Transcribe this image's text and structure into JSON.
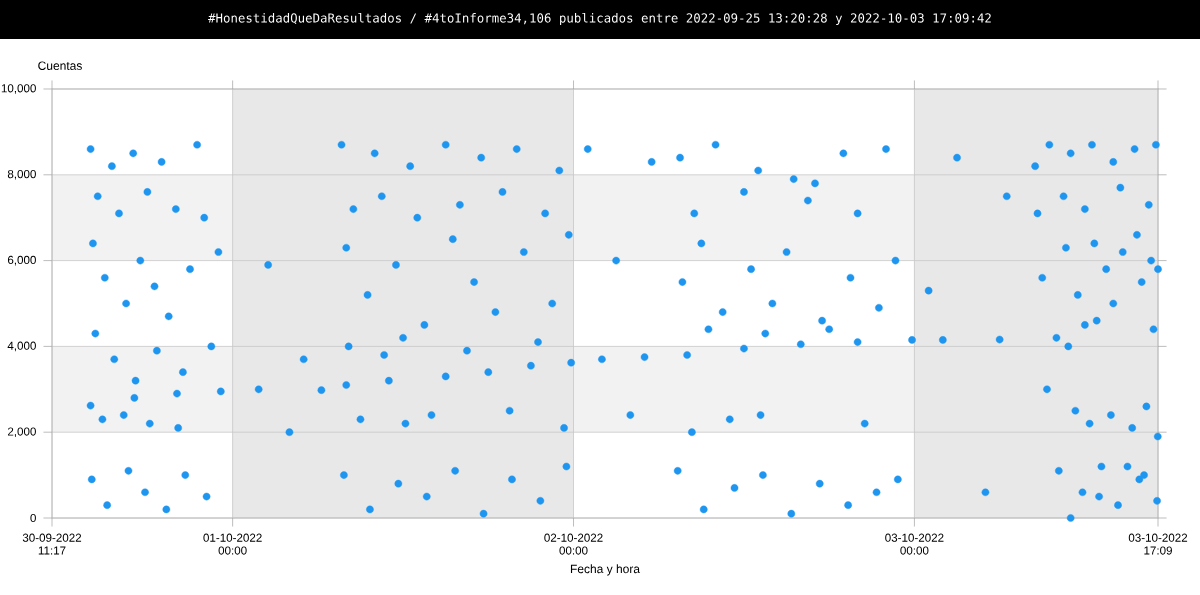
{
  "chart_data": {
    "type": "scatter",
    "title": "#HonestidadQueDaResultados / #4toInforme34,106 publicados entre 2022-09-25 13:20:28 y 2022-10-03 17:09:42",
    "xlabel": "Fecha y hora",
    "ylabel": "Cuentas",
    "xlim": [
      "2022-09-30T11:17",
      "2022-10-03T17:09"
    ],
    "xticks": [
      {
        "value": "2022-09-30T11:17",
        "label": "30-09-2022 11:17"
      },
      {
        "value": "2022-10-01T00:00",
        "label": "01-10-2022 00:00"
      },
      {
        "value": "2022-10-02T00:00",
        "label": "02-10-2022 00:00"
      },
      {
        "value": "2022-10-03T00:00",
        "label": "03-10-2022 00:00"
      },
      {
        "value": "2022-10-03T17:09",
        "label": "03-10-2022 17:09"
      }
    ],
    "ylim": [
      0,
      10000
    ],
    "yticks": [
      0,
      {
        "value": 2000,
        "label": "2,000"
      },
      {
        "value": 4000,
        "label": "4,000"
      },
      {
        "value": 6000,
        "label": "6,000"
      },
      {
        "value": 8000,
        "label": "8,000"
      },
      {
        "value": 10000,
        "label": "10,000"
      }
    ],
    "grid": true,
    "marker": "circle",
    "bands": [
      {
        "axis": "y",
        "from": 2000,
        "to": 4000,
        "color": "#f2f2f2"
      },
      {
        "axis": "y",
        "from": 6000,
        "to": 8000,
        "color": "#f2f2f2"
      },
      {
        "axis": "x",
        "from": "2022-10-01T00:00",
        "to": "2022-10-02T00:00",
        "color": "#e8e8e8"
      },
      {
        "axis": "x",
        "from": "2022-10-03T00:00",
        "to": "2022-10-03T17:09",
        "color": "#e8e8e8"
      }
    ],
    "series": [
      {
        "color": "#1e96f0",
        "x": [
          "2022-09-30T14:00",
          "2022-09-30T15:30",
          "2022-09-30T17:00",
          "2022-09-30T19:00",
          "2022-09-30T21:30",
          "2022-09-30T14:30",
          "2022-09-30T16:00",
          "2022-09-30T18:00",
          "2022-09-30T20:00",
          "2022-09-30T22:00",
          "2022-09-30T14:10",
          "2022-09-30T15:00",
          "2022-09-30T16:30",
          "2022-09-30T17:30",
          "2022-09-30T18:30",
          "2022-09-30T19:30",
          "2022-09-30T21:00",
          "2022-09-30T23:00",
          "2022-09-30T14:20",
          "2022-09-30T15:40",
          "2022-09-30T17:10",
          "2022-09-30T18:40",
          "2022-09-30T20:30",
          "2022-09-30T22:30",
          "2022-09-30T14:50",
          "2022-09-30T16:20",
          "2022-09-30T18:10",
          "2022-09-30T20:10",
          "2022-09-30T14:05",
          "2022-09-30T15:10",
          "2022-09-30T16:40",
          "2022-09-30T17:50",
          "2022-09-30T19:20",
          "2022-09-30T20:40",
          "2022-09-30T22:10",
          "2022-09-30T14:00",
          "2022-09-30T17:05",
          "2022-09-30T20:05",
          "2022-09-30T23:10",
          "2022-10-01T01:50",
          "2022-10-01T02:30",
          "2022-10-01T04:00",
          "2022-10-01T05:00",
          "2022-10-01T06:15",
          "2022-10-01T08:00",
          "2022-10-01T11:00",
          "2022-10-01T15:00",
          "2022-10-01T18:00",
          "2022-10-01T21:00",
          "2022-10-01T23:50",
          "2022-10-01T07:40",
          "2022-10-01T10:00",
          "2022-10-01T12:30",
          "2022-10-01T15:00",
          "2022-10-01T17:30",
          "2022-10-01T20:00",
          "2022-10-01T23:00",
          "2022-10-01T08:30",
          "2022-10-01T10:30",
          "2022-10-01T13:00",
          "2022-10-01T16:00",
          "2022-10-01T19:00",
          "2022-10-01T22:00",
          "2022-10-01T08:00",
          "2022-10-01T09:30",
          "2022-10-01T11:30",
          "2022-10-01T13:30",
          "2022-10-01T15:30",
          "2022-10-01T17:00",
          "2022-10-01T18:30",
          "2022-10-01T20:30",
          "2022-10-01T22:30",
          "2022-10-01T23:40",
          "2022-10-01T08:10",
          "2022-10-01T10:40",
          "2022-10-01T12:00",
          "2022-10-01T16:30",
          "2022-10-01T21:30",
          "2022-10-01T09:00",
          "2022-10-01T12:10",
          "2022-10-01T14:00",
          "2022-10-01T19:30",
          "2022-10-01T23:20",
          "2022-10-01T07:50",
          "2022-10-01T09:40",
          "2022-10-01T11:40",
          "2022-10-01T13:40",
          "2022-10-01T15:40",
          "2022-10-01T17:40",
          "2022-10-01T19:40",
          "2022-10-01T21:40",
          "2022-10-01T23:30",
          "2022-10-02T02:00",
          "2022-10-02T05:00",
          "2022-10-02T01:00",
          "2022-10-02T03:00",
          "2022-10-02T04:00",
          "2022-10-02T05:30",
          "2022-10-02T08:00",
          "2022-10-02T12:00",
          "2022-10-02T16:00",
          "2022-10-02T20:00",
          "2022-10-02T23:50",
          "2022-10-02T07:30",
          "2022-10-02T10:00",
          "2022-10-02T13:00",
          "2022-10-02T15:30",
          "2022-10-02T17:00",
          "2022-10-02T19:00",
          "2022-10-02T22:00",
          "2022-10-02T08:30",
          "2022-10-02T12:00",
          "2022-10-02T16:30",
          "2022-10-02T20:00",
          "2022-10-02T07:40",
          "2022-10-02T09:00",
          "2022-10-02T10:30",
          "2022-10-02T12:30",
          "2022-10-02T14:00",
          "2022-10-02T15:00",
          "2022-10-02T17:30",
          "2022-10-02T19:30",
          "2022-10-02T21:30",
          "2022-10-02T22:40",
          "2022-10-02T09:30",
          "2022-10-02T13:30",
          "2022-10-02T18:00",
          "2022-10-02T08:20",
          "2022-10-02T11:00",
          "2022-10-02T13:10",
          "2022-10-02T20:30",
          "2022-10-02T07:20",
          "2022-10-02T09:10",
          "2022-10-02T11:20",
          "2022-10-02T13:20",
          "2022-10-02T15:20",
          "2022-10-02T17:20",
          "2022-10-02T19:20",
          "2022-10-02T21:20",
          "2022-10-02T22:50",
          "2022-10-03T02:00",
          "2022-10-03T06:00",
          "2022-10-03T01:00",
          "2022-10-03T03:00",
          "2022-10-03T05:00",
          "2022-10-03T06:30",
          "2022-10-03T10:00",
          "2022-10-03T12:00",
          "2022-10-03T14:00",
          "2022-10-03T16:00",
          "2022-10-03T17:09",
          "2022-10-03T11:00",
          "2022-10-03T13:00",
          "2022-10-03T15:00",
          "2022-10-03T17:08",
          "2022-10-03T08:30",
          "2022-10-03T09:30",
          "2022-10-03T11:00",
          "2022-10-03T12:30",
          "2022-10-03T14:00",
          "2022-10-03T15:30",
          "2022-10-03T17:00",
          "2022-10-03T08:40",
          "2022-10-03T10:30",
          "2022-10-03T12:00",
          "2022-10-03T14:30",
          "2022-10-03T16:30",
          "2022-10-03T09:00",
          "2022-10-03T10:40",
          "2022-10-03T11:30",
          "2022-10-03T12:40",
          "2022-10-03T13:30",
          "2022-10-03T14:40",
          "2022-10-03T15:40",
          "2022-10-03T16:40",
          "2022-10-03T10:50",
          "2022-10-03T12:50",
          "2022-10-03T16:50",
          "2022-10-03T09:20",
          "2022-10-03T11:20",
          "2022-10-03T12:20",
          "2022-10-03T13:50",
          "2022-10-03T15:20",
          "2022-10-03T16:20",
          "2022-10-03T10:10",
          "2022-10-03T11:50",
          "2022-10-03T13:10",
          "2022-10-03T14:20",
          "2022-10-03T15:50",
          "2022-10-03T16:10",
          "2022-10-03T17:05"
        ],
        "values": [
          8600,
          8200,
          8500,
          8300,
          8700,
          7500,
          7100,
          7600,
          7200,
          7000,
          6400,
          5600,
          5000,
          6000,
          5400,
          4700,
          5800,
          6200,
          4300,
          3700,
          3200,
          3900,
          3400,
          4000,
          2300,
          2400,
          2200,
          2100,
          900,
          300,
          1100,
          600,
          200,
          1000,
          500,
          2620,
          2800,
          2900,
          2950,
          3000,
          5900,
          2000,
          3700,
          2980,
          3100,
          3200,
          3300,
          3400,
          3550,
          3620,
          8700,
          8500,
          8200,
          8700,
          8400,
          8600,
          8100,
          7200,
          7500,
          7000,
          7300,
          7600,
          7100,
          6300,
          5200,
          5900,
          4500,
          6500,
          5500,
          4800,
          6200,
          5000,
          6600,
          4000,
          3800,
          4200,
          3900,
          4100,
          2300,
          2200,
          2400,
          2500,
          2100,
          1000,
          200,
          800,
          500,
          1100,
          100,
          900,
          400,
          1200,
          3700,
          3750,
          8600,
          6000,
          2400,
          8300,
          3800,
          3950,
          4050,
          4100,
          4150,
          8400,
          8700,
          8100,
          7900,
          7800,
          8500,
          8600,
          7100,
          7600,
          7400,
          7100,
          5500,
          6400,
          4800,
          5800,
          5000,
          6200,
          4600,
          5600,
          4900,
          6000,
          4400,
          4300,
          4400,
          2000,
          2300,
          2400,
          2200,
          1100,
          200,
          700,
          1000,
          100,
          800,
          300,
          600,
          900,
          4150,
          4160,
          5300,
          8400,
          600,
          7500,
          4200,
          4500,
          5000,
          5500,
          5800,
          0,
          500,
          1200,
          1900,
          8200,
          8700,
          8500,
          8700,
          8300,
          8600,
          8700,
          7100,
          7500,
          7200,
          7700,
          7300,
          5600,
          6300,
          5200,
          6400,
          5800,
          6200,
          6600,
          6000,
          4000,
          4600,
          4400,
          3000,
          2500,
          2200,
          2400,
          2100,
          2600,
          1100,
          600,
          1200,
          300,
          900,
          1000,
          400
        ]
      }
    ]
  }
}
